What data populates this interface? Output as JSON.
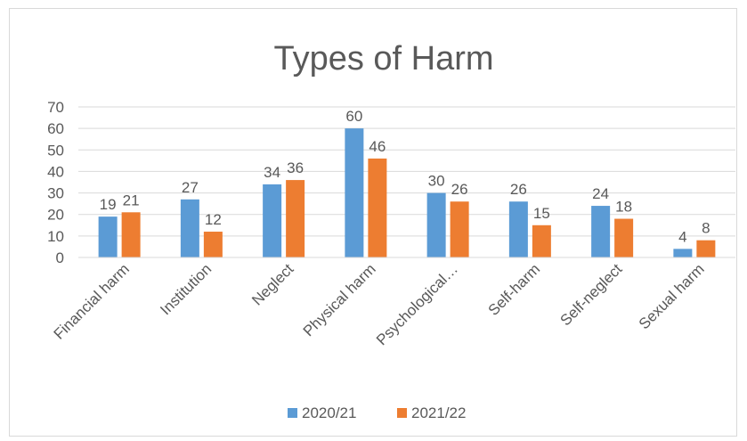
{
  "chart_data": {
    "type": "bar",
    "title": "Types of Harm",
    "categories": [
      "Financial harm",
      "Institution",
      "Neglect",
      "Physical harm",
      "Psychological…",
      "Self-harm",
      "Self-neglect",
      "Sexual harm"
    ],
    "series": [
      {
        "name": "2020/21",
        "values": [
          19,
          27,
          34,
          60,
          30,
          26,
          24,
          4
        ],
        "color": "#5B9BD5"
      },
      {
        "name": "2021/22",
        "values": [
          21,
          12,
          36,
          46,
          26,
          15,
          18,
          8
        ],
        "color": "#ED7D31"
      }
    ],
    "yticks": [
      "0",
      "10",
      "20",
      "30",
      "40",
      "50",
      "60",
      "70"
    ],
    "ylim": [
      0,
      70
    ],
    "grid": true,
    "legend": "bottom",
    "data_labels": true
  }
}
